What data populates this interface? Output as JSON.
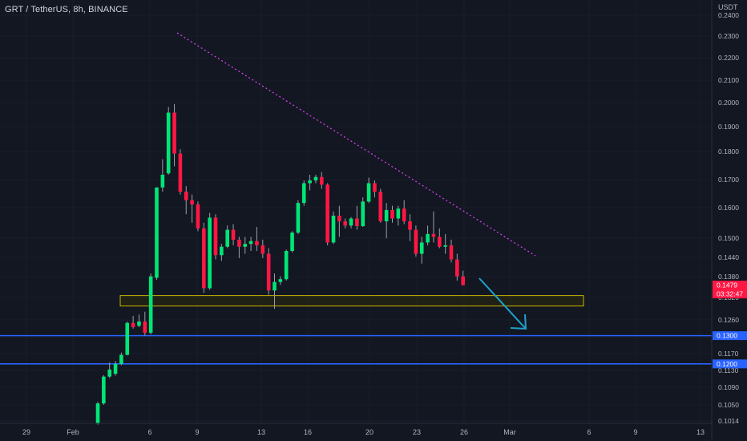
{
  "header": {
    "legend": "GRT / TetherUS, 8h, BINANCE"
  },
  "chart_data": {
    "type": "candlestick",
    "symbol": "GRT / TetherUS",
    "interval": "8h",
    "exchange": "BINANCE",
    "ylabel": "USDT",
    "ylim": [
      0.0995,
      0.2435
    ],
    "y_ticks": [
      "0.2400",
      "0.2300",
      "0.2200",
      "0.2100",
      "0.2000",
      "0.1900",
      "0.1800",
      "0.1700",
      "0.1600",
      "0.1500",
      "0.1440",
      "0.1380",
      "0.1320",
      "0.1260",
      "0.1210",
      "0.1170",
      "0.1130",
      "0.1090",
      "0.1050",
      "0.1014"
    ],
    "x_ticks": [
      "29",
      "Feb",
      "6",
      "9",
      "13",
      "16",
      "20",
      "23",
      "26",
      "Mar",
      "6",
      "9",
      "13"
    ],
    "candles": [
      [
        0.099,
        0.1065,
        0.0985,
        0.106
      ],
      [
        0.106,
        0.116,
        0.1055,
        0.1155
      ],
      [
        0.1155,
        0.1205,
        0.115,
        0.118
      ],
      [
        0.1165,
        0.121,
        0.1158,
        0.12
      ],
      [
        0.12,
        0.124,
        0.1195,
        0.1232
      ],
      [
        0.1232,
        0.135,
        0.123,
        0.1345
      ],
      [
        0.1345,
        0.137,
        0.1325,
        0.133
      ],
      [
        0.1335,
        0.1375,
        0.133,
        0.135
      ],
      [
        0.135,
        0.1385,
        0.13,
        0.131
      ],
      [
        0.131,
        0.152,
        0.1305,
        0.151
      ],
      [
        0.1505,
        0.1825,
        0.1498,
        0.1825
      ],
      [
        0.1825,
        0.1925,
        0.181,
        0.187
      ],
      [
        0.1875,
        0.211,
        0.187,
        0.209
      ],
      [
        0.209,
        0.212,
        0.19,
        0.1945
      ],
      [
        0.1945,
        0.196,
        0.18,
        0.181
      ],
      [
        0.181,
        0.183,
        0.173,
        0.178
      ],
      [
        0.178,
        0.18,
        0.17,
        0.1765
      ],
      [
        0.1765,
        0.1775,
        0.167,
        0.168
      ],
      [
        0.168,
        0.17,
        0.1452,
        0.1468
      ],
      [
        0.1468,
        0.1735,
        0.1462,
        0.1718
      ],
      [
        0.1718,
        0.173,
        0.157,
        0.1585
      ],
      [
        0.1585,
        0.1625,
        0.1565,
        0.1615
      ],
      [
        0.1615,
        0.169,
        0.161,
        0.1675
      ],
      [
        0.1675,
        0.1695,
        0.162,
        0.164
      ],
      [
        0.164,
        0.165,
        0.1575,
        0.1615
      ],
      [
        0.1615,
        0.165,
        0.159,
        0.1625
      ],
      [
        0.1625,
        0.165,
        0.16,
        0.1635
      ],
      [
        0.1635,
        0.1685,
        0.16,
        0.162
      ],
      [
        0.162,
        0.164,
        0.1575,
        0.159
      ],
      [
        0.159,
        0.161,
        0.1445,
        0.146
      ],
      [
        0.146,
        0.152,
        0.1395,
        0.149
      ],
      [
        0.149,
        0.151,
        0.148,
        0.15
      ],
      [
        0.15,
        0.1605,
        0.1495,
        0.16
      ],
      [
        0.16,
        0.167,
        0.1595,
        0.1665
      ],
      [
        0.1665,
        0.178,
        0.166,
        0.177
      ],
      [
        0.177,
        0.185,
        0.176,
        0.184
      ],
      [
        0.184,
        0.187,
        0.1815,
        0.185
      ],
      [
        0.185,
        0.187,
        0.184,
        0.1862
      ],
      [
        0.1862,
        0.188,
        0.182,
        0.1835
      ],
      [
        0.1835,
        0.184,
        0.162,
        0.163
      ],
      [
        0.163,
        0.174,
        0.1625,
        0.1725
      ],
      [
        0.1725,
        0.176,
        0.165,
        0.1705
      ],
      [
        0.1705,
        0.1715,
        0.168,
        0.169
      ],
      [
        0.169,
        0.172,
        0.168,
        0.1715
      ],
      [
        0.1715,
        0.176,
        0.1675,
        0.1688
      ],
      [
        0.1688,
        0.179,
        0.1685,
        0.1775
      ],
      [
        0.1775,
        0.186,
        0.177,
        0.184
      ],
      [
        0.184,
        0.185,
        0.179,
        0.181
      ],
      [
        0.181,
        0.182,
        0.17,
        0.1705
      ],
      [
        0.1705,
        0.177,
        0.1645,
        0.1745
      ],
      [
        0.1745,
        0.176,
        0.17,
        0.1715
      ],
      [
        0.1715,
        0.176,
        0.169,
        0.175
      ],
      [
        0.175,
        0.178,
        0.1695,
        0.1705
      ],
      [
        0.1705,
        0.173,
        0.1635,
        0.1675
      ],
      [
        0.1675,
        0.169,
        0.158,
        0.159
      ],
      [
        0.159,
        0.165,
        0.1555,
        0.163
      ],
      [
        0.163,
        0.169,
        0.162,
        0.166
      ],
      [
        0.166,
        0.174,
        0.163,
        0.165
      ],
      [
        0.165,
        0.168,
        0.161,
        0.1615
      ],
      [
        0.1615,
        0.166,
        0.159,
        0.162
      ],
      [
        0.162,
        0.164,
        0.156,
        0.157
      ],
      [
        0.157,
        0.159,
        0.1495,
        0.151
      ],
      [
        0.151,
        0.153,
        0.1478,
        0.1479
      ]
    ],
    "last_price": "0.1479",
    "countdown": "03:32:47",
    "support_zone": [
      0.1405,
      0.1442
    ],
    "horizontal_levels": [
      "0.1300",
      "0.1200"
    ],
    "colors": {
      "up": "#26a69a",
      "bull_bright": "#00e676",
      "down": "#ff1744",
      "zone": "#c8b400",
      "level": "#2962ff",
      "trendline": "#e040fb",
      "arrow": "#1fa2c9",
      "background": "#131722"
    }
  }
}
